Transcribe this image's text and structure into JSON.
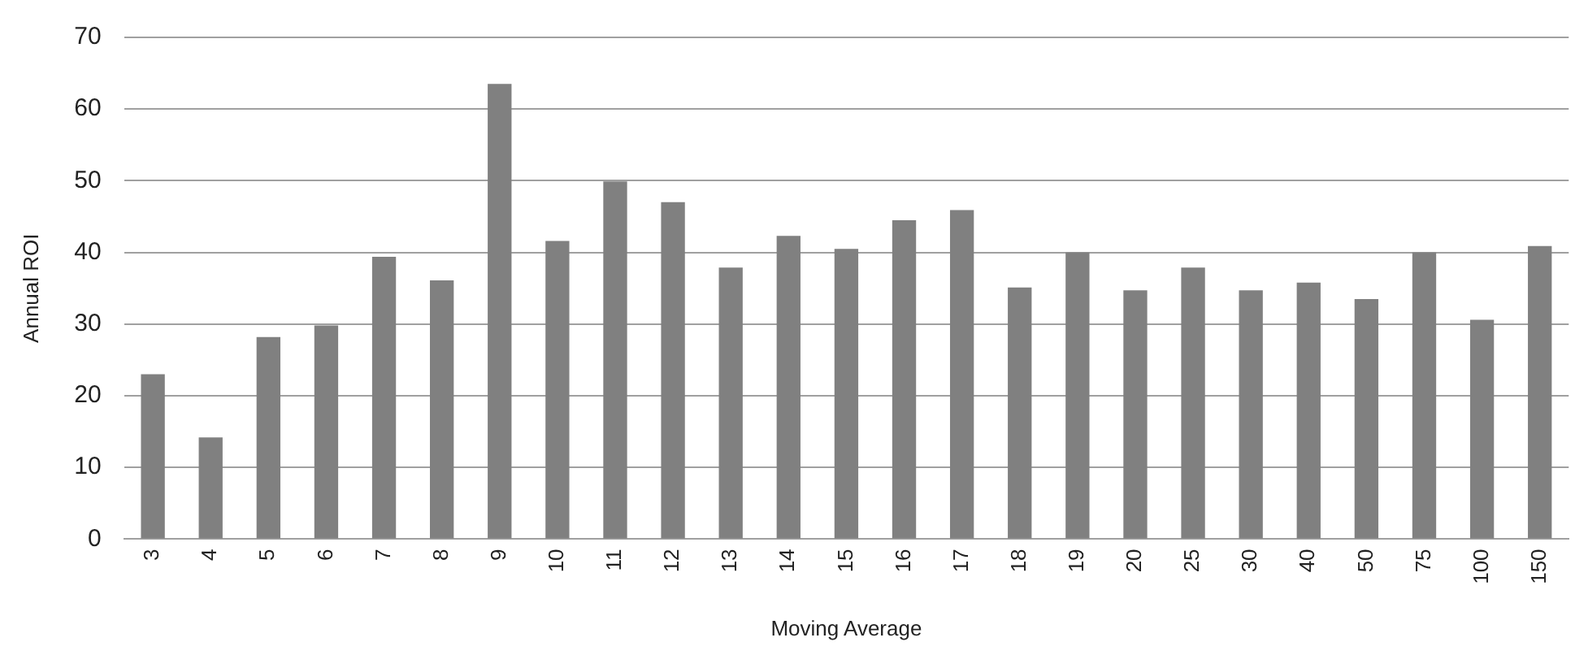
{
  "chart_data": {
    "type": "bar",
    "xlabel": "Moving Average",
    "ylabel": "Annual ROI",
    "categories": [
      "3",
      "4",
      "5",
      "6",
      "7",
      "8",
      "9",
      "10",
      "11",
      "12",
      "13",
      "14",
      "15",
      "16",
      "17",
      "18",
      "19",
      "20",
      "25",
      "30",
      "40",
      "50",
      "75",
      "100",
      "150"
    ],
    "values": [
      23.0,
      14.2,
      28.2,
      29.8,
      39.4,
      36.1,
      63.5,
      41.6,
      49.9,
      47.0,
      37.9,
      42.3,
      40.5,
      44.5,
      45.9,
      35.1,
      40.0,
      34.7,
      37.9,
      34.7,
      35.8,
      33.5,
      40.0,
      30.6,
      40.9
    ],
    "color": "#808080",
    "ylim": [
      0,
      70
    ],
    "yticks": [
      0,
      10,
      20,
      30,
      40,
      50,
      60,
      70
    ],
    "grid": "y",
    "legend": false
  }
}
